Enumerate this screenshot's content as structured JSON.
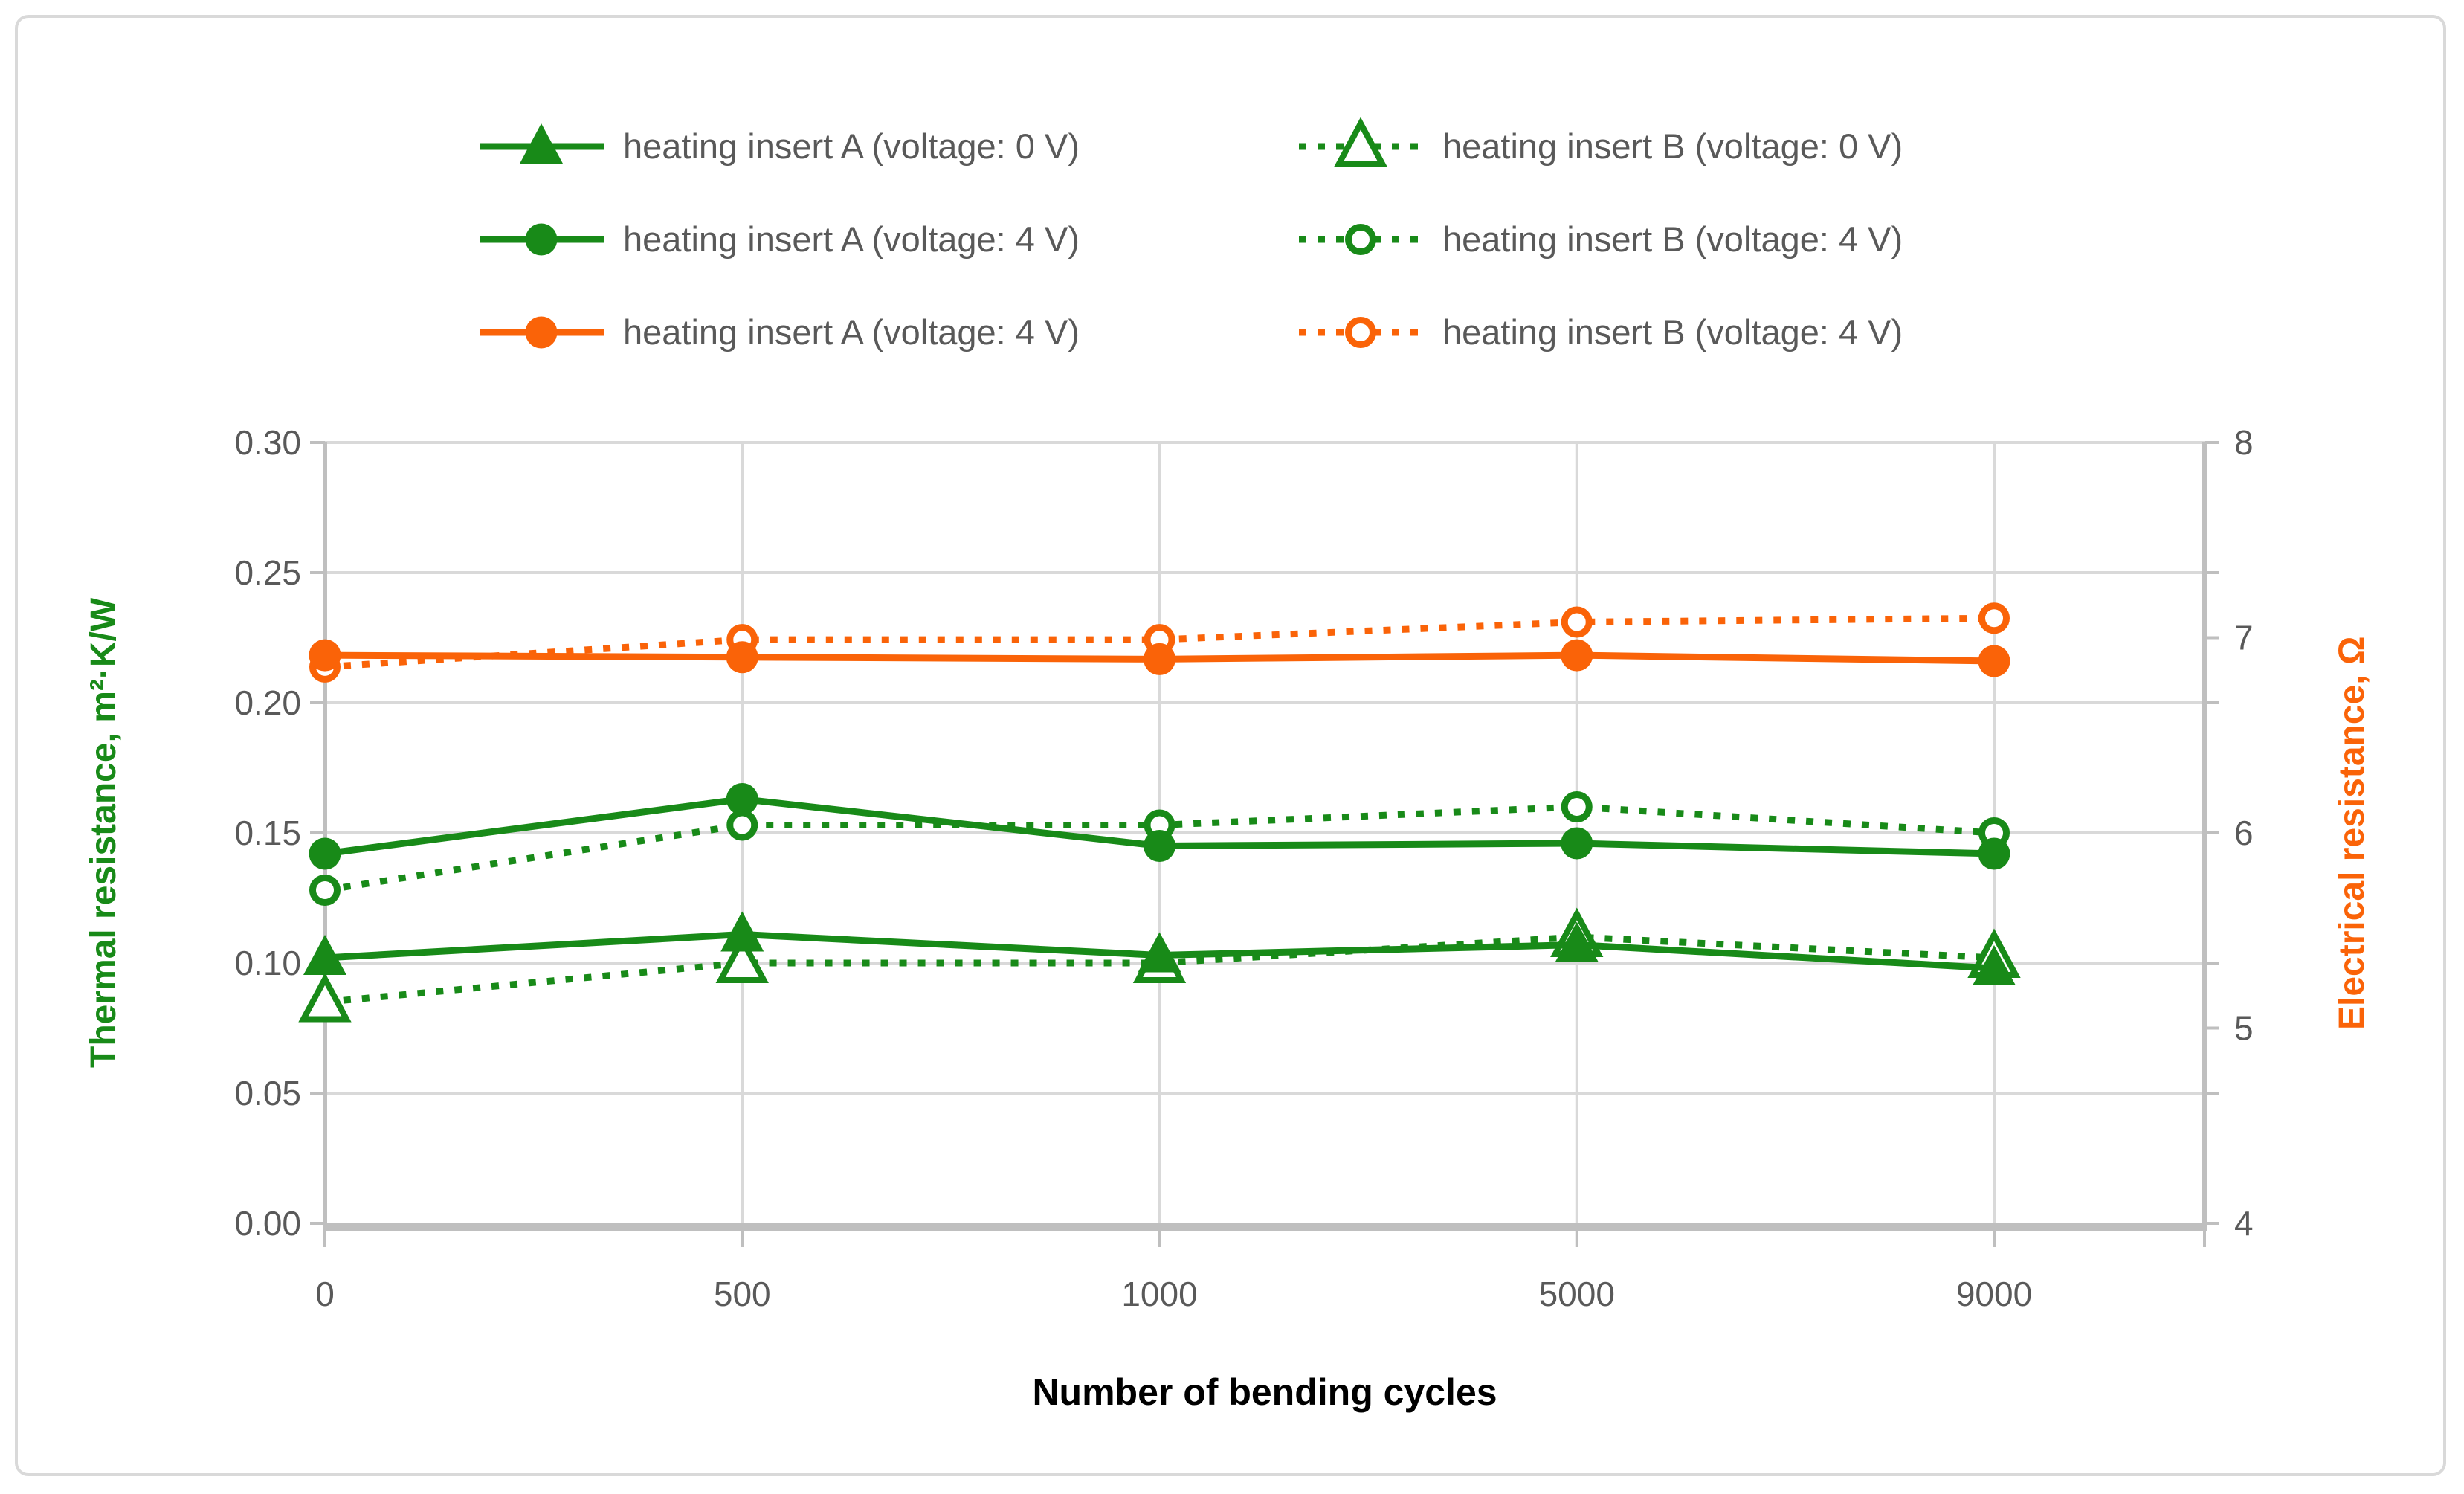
{
  "page": {
    "background": "#ffffff",
    "frame_border_color": "#d9d9d9"
  },
  "colors": {
    "green": "#188a18",
    "orange": "#fa6308",
    "gridline": "#d9d9d9",
    "axis_line": "#bfbfbf",
    "tick_text": "#595959",
    "legend_text": "#595959"
  },
  "chart_data": {
    "type": "line",
    "title": "",
    "categories": [
      "0",
      "500",
      "1000",
      "5000",
      "9000"
    ],
    "x_axis": {
      "title": "Number of bending cycles",
      "tick_labels": [
        "0",
        "500",
        "1000",
        "5000",
        "9000"
      ]
    },
    "left_axis": {
      "title": "Thermal resistance, m²·K/W",
      "min": 0.0,
      "max": 0.3,
      "step": 0.05,
      "tick_labels": [
        "0.30",
        "0.25",
        "0.20",
        "0.15",
        "0.10",
        "0.05",
        "0.00"
      ]
    },
    "right_axis": {
      "title": "Electrical resistance, Ω",
      "min": 4,
      "max": 8,
      "step": 1,
      "tick_labels": [
        "8",
        "7",
        "6",
        "5",
        "4"
      ]
    },
    "grid": true,
    "legend_position": "top",
    "legend_columns": 2,
    "series": [
      {
        "name": "heating insert A (voltage: 0 V)",
        "axis": "left",
        "color": "#188a18",
        "line": "solid",
        "marker": "triangle-filled",
        "values": [
          0.102,
          0.111,
          0.103,
          0.107,
          0.098
        ],
        "legend_row": 0,
        "legend_col": 0,
        "z": 2
      },
      {
        "name": "heating insert B (voltage: 0 V)",
        "axis": "left",
        "color": "#188a18",
        "line": "dotted",
        "marker": "triangle-open",
        "values": [
          0.085,
          0.1,
          0.1,
          0.11,
          0.102
        ],
        "legend_row": 0,
        "legend_col": 1,
        "z": 1
      },
      {
        "name": "heating insert A (voltage: 4 V)",
        "axis": "left",
        "color": "#188a18",
        "line": "solid",
        "marker": "circle-filled",
        "values": [
          0.142,
          0.163,
          0.145,
          0.146,
          0.142
        ],
        "legend_row": 1,
        "legend_col": 0,
        "z": 4
      },
      {
        "name": "heating insert B (voltage: 4 V)",
        "axis": "left",
        "color": "#188a18",
        "line": "dotted",
        "marker": "circle-open",
        "values": [
          0.128,
          0.153,
          0.153,
          0.16,
          0.15
        ],
        "legend_row": 1,
        "legend_col": 1,
        "z": 3
      },
      {
        "name": "heating insert A (voltage: 4 V)",
        "axis": "right",
        "color": "#fa6308",
        "line": "solid",
        "marker": "circle-filled",
        "values": [
          6.91,
          6.9,
          6.89,
          6.91,
          6.88
        ],
        "legend_row": 2,
        "legend_col": 0,
        "z": 6
      },
      {
        "name": "heating insert B (voltage: 4 V)",
        "axis": "right",
        "color": "#fa6308",
        "line": "dotted",
        "marker": "circle-open",
        "values": [
          6.85,
          6.99,
          6.99,
          7.08,
          7.1
        ],
        "legend_row": 2,
        "legend_col": 1,
        "z": 5
      }
    ]
  }
}
